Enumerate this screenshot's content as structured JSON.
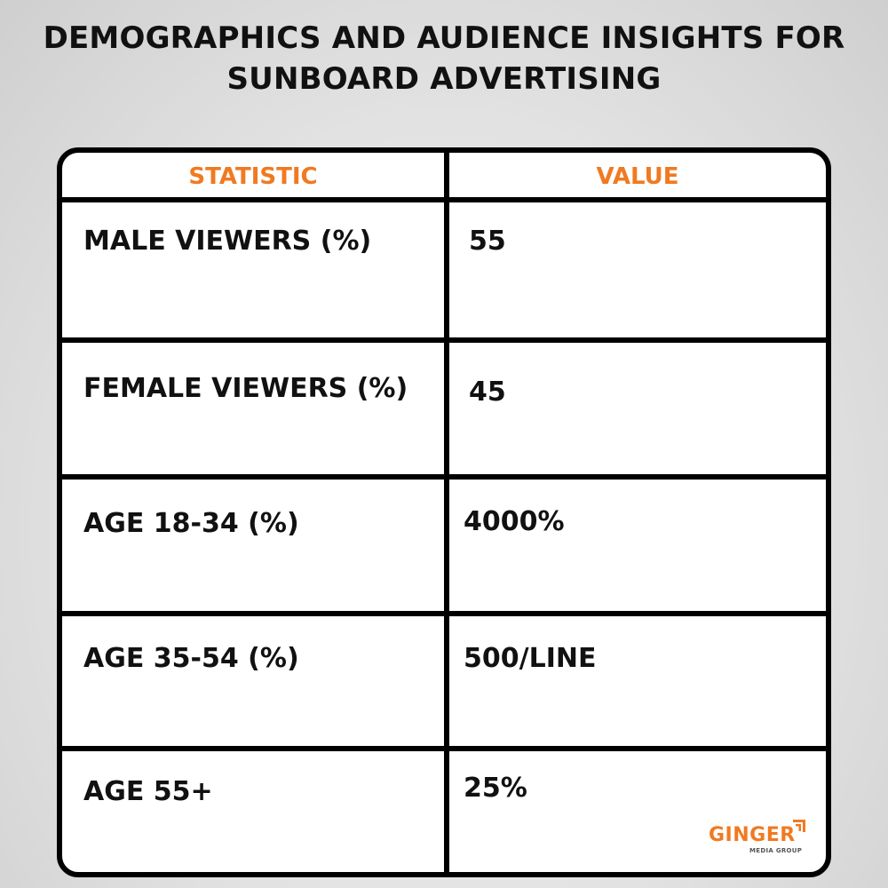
{
  "title": {
    "line1": "DEMOGRAPHICS AND AUDIENCE INSIGHTS FOR",
    "line2": "SUNBOARD ADVERTISING"
  },
  "table": {
    "headers": {
      "statistic": "STATISTIC",
      "value": "VALUE"
    },
    "rows": [
      {
        "statistic": "MALE VIEWERS (%)",
        "value": "55"
      },
      {
        "statistic": "FEMALE VIEWERS (%)",
        "value": "45"
      },
      {
        "statistic": "AGE 18-34 (%)",
        "value": "4000%"
      },
      {
        "statistic": "AGE 35-54 (%)",
        "value": "500/LINE"
      },
      {
        "statistic": "AGE 55+",
        "value": "25%"
      }
    ]
  },
  "logo": {
    "name": "GINGER",
    "tagline": "MEDIA GROUP",
    "icon": "ginger-logo-mark-icon"
  },
  "colors": {
    "accent": "#f07a21",
    "border": "#000000",
    "text": "#111111"
  }
}
